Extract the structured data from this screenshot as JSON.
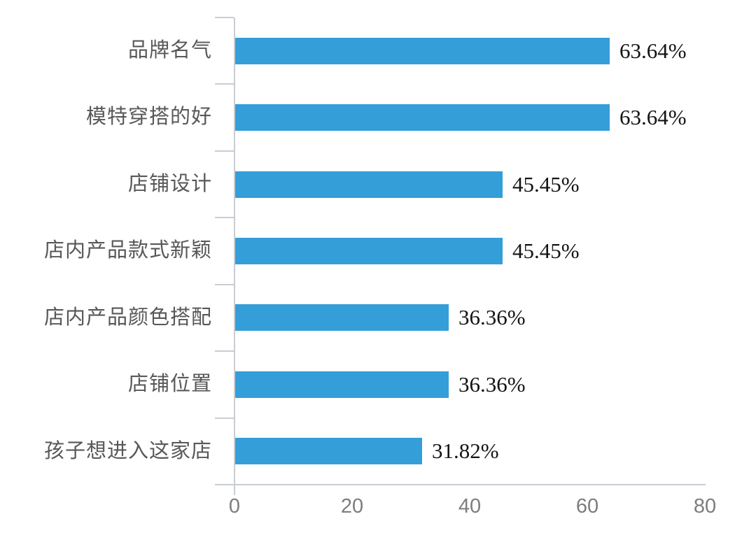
{
  "chart_data": {
    "type": "bar",
    "orientation": "horizontal",
    "title": "",
    "xlabel": "",
    "ylabel": "",
    "categories": [
      "品牌名气",
      "模特穿搭的好",
      "店铺设计",
      "店内产品款式新颖",
      "店内产品颜色搭配",
      "店铺位置",
      "孩子想进入这家店"
    ],
    "values": [
      63.64,
      63.64,
      45.45,
      45.45,
      36.36,
      36.36,
      31.82
    ],
    "value_labels": [
      "63.64%",
      "63.64%",
      "45.45%",
      "45.45%",
      "36.36%",
      "36.36%",
      "31.82%"
    ],
    "x_ticks": [
      "0",
      "20",
      "40",
      "60",
      "80"
    ],
    "x_tick_values": [
      0,
      20,
      40,
      60,
      80
    ],
    "xlim": [
      0,
      80
    ],
    "grid": false,
    "legend": false,
    "colors": {
      "bar": "#349ED8",
      "axis": "#C9CDD3",
      "category_label": "#595757",
      "value_label": "#141414",
      "tick_label": "#7D7D7F",
      "background": "#FFFFFF"
    }
  }
}
